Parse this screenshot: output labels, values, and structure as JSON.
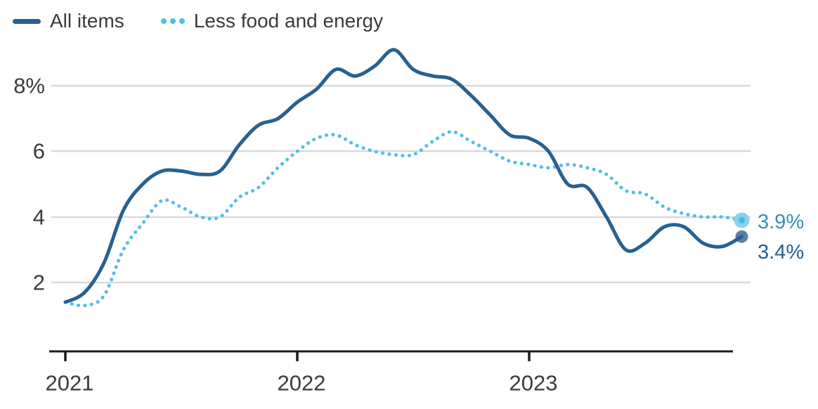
{
  "legend": {
    "items": [
      {
        "label": "All items",
        "swatch": "solid-line",
        "color": "#28618f"
      },
      {
        "label": "Less food and energy",
        "swatch": "dotted-line",
        "color": "#4fbfe3"
      }
    ]
  },
  "chart_data": {
    "type": "line",
    "title": "",
    "x_unit": "month",
    "x_range": "Jan 2021 - Dec 2023",
    "x_ticks": [
      {
        "label": "2021",
        "month_index": 0
      },
      {
        "label": "2022",
        "month_index": 12
      },
      {
        "label": "2023",
        "month_index": 24
      }
    ],
    "y_ticks": [
      {
        "label": "2",
        "value": 2
      },
      {
        "label": "4",
        "value": 4
      },
      {
        "label": "6",
        "value": 6
      },
      {
        "label": "8%",
        "value": 8
      }
    ],
    "ylim": [
      1,
      9.5
    ],
    "grid": "horizontal",
    "legend_position": "top-left",
    "series": [
      {
        "name": "Less food and energy",
        "style": "dotted",
        "color": "#4fbfe3",
        "marker_fill": "#8bd1ee",
        "marker_center": "#45b9e2",
        "end_label": "3.9%",
        "end_label_color": "#3590b5",
        "values": [
          1.4,
          1.3,
          1.6,
          3.0,
          3.8,
          4.5,
          4.3,
          4.0,
          4.0,
          4.6,
          4.9,
          5.5,
          6.0,
          6.4,
          6.5,
          6.2,
          6.0,
          5.9,
          5.9,
          6.3,
          6.6,
          6.3,
          6.0,
          5.7,
          5.6,
          5.5,
          5.6,
          5.5,
          5.3,
          4.8,
          4.7,
          4.3,
          4.1,
          4.0,
          4.0,
          3.9
        ]
      },
      {
        "name": "All items",
        "style": "solid",
        "color": "#28618f",
        "marker_fill": "#5b80a5",
        "end_label": "3.4%",
        "end_label_color": "#27608e",
        "values": [
          1.4,
          1.7,
          2.6,
          4.2,
          5.0,
          5.4,
          5.4,
          5.3,
          5.4,
          6.2,
          6.8,
          7.0,
          7.5,
          7.9,
          8.5,
          8.3,
          8.6,
          9.1,
          8.5,
          8.3,
          8.2,
          7.7,
          7.1,
          6.5,
          6.4,
          6.0,
          5.0,
          4.9,
          4.0,
          3.0,
          3.2,
          3.7,
          3.7,
          3.2,
          3.1,
          3.4
        ]
      }
    ]
  }
}
